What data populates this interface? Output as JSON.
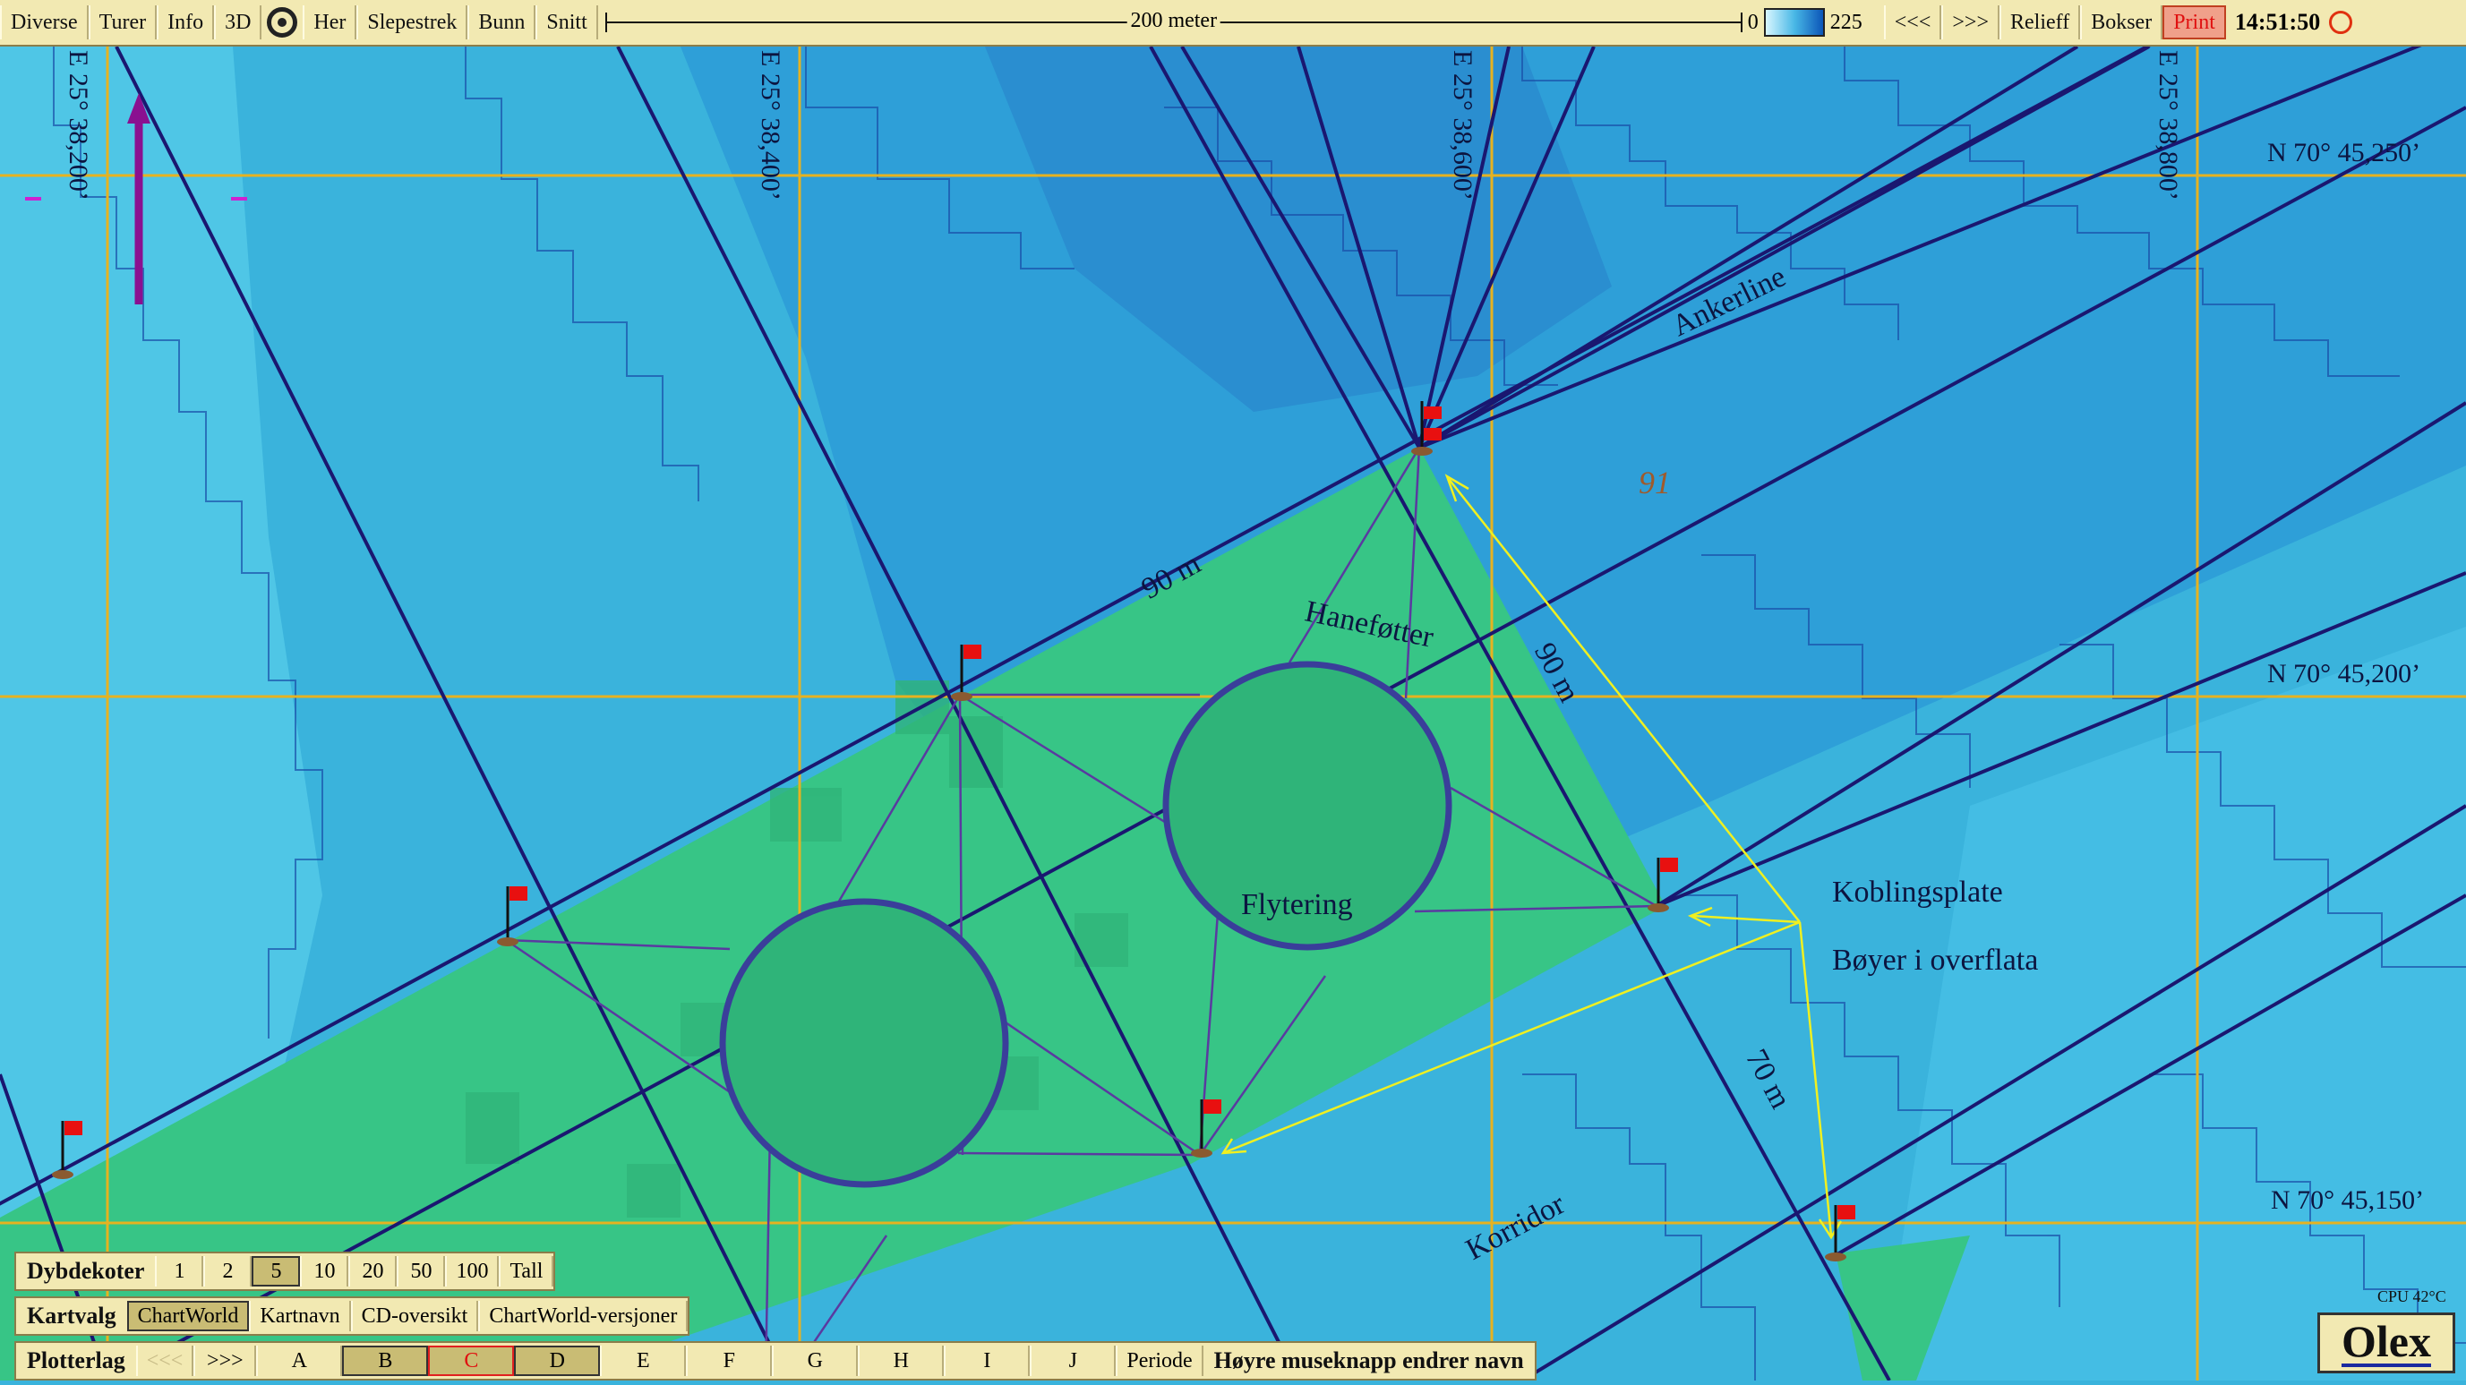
{
  "toolbar": {
    "buttons": [
      "Diverse",
      "Turer",
      "Info",
      "3D"
    ],
    "her": "Her",
    "buttons2": [
      "Slepestrek",
      "Bunn",
      "Snitt"
    ],
    "scale_label": "200 meter",
    "depth_min": "0",
    "depth_max": "225",
    "prev": "<<<",
    "next": ">>>",
    "relief": "Relieff",
    "bokser": "Bokser",
    "print": "Print",
    "clock": "14:51:50"
  },
  "map": {
    "lon_labels": [
      "E 25° 38,200’",
      "E 25° 38,400’",
      "E 25° 38,600’",
      "E 25° 38,800’"
    ],
    "lat_labels": [
      "N 70° 45,250’",
      "N 70° 45,200’",
      "N 70° 45,150’"
    ],
    "depth_value": "91",
    "labels": {
      "ankerline": "Ankerline",
      "hanefotter": "Haneføtter",
      "m90_a": "90 m",
      "m90_b": "90 m",
      "m70": "70 m",
      "flytering": "Flytering",
      "koblingsplate": "Koblingsplate",
      "boyer": "Bøyer i overflata",
      "korridor": "Korridor"
    },
    "colors": {
      "shallow": "#4fc6e6",
      "mid": "#3ab3dc",
      "deep": "#2696d4",
      "farm": "#37c586",
      "lines": "#1a1770",
      "grid": "#e6b220",
      "buoy_flag": "#e81010",
      "pointer": "#f0f020"
    }
  },
  "panels": {
    "dybdekoter": {
      "title": "Dybdekoter",
      "values": [
        "1",
        "2",
        "5",
        "10",
        "20",
        "50",
        "100",
        "Tall"
      ],
      "selected": "5"
    },
    "kartvalg": {
      "title": "Kartvalg",
      "items": [
        "ChartWorld",
        "Kartnavn",
        "CD-oversikt",
        "ChartWorld-versjoner"
      ],
      "selected": "ChartWorld"
    },
    "plotterlag": {
      "title": "Plotterlag",
      "prev": "<<<",
      "next": ">>>",
      "layers": [
        "A",
        "B",
        "C",
        "D",
        "E",
        "F",
        "G",
        "H",
        "I",
        "J"
      ],
      "periode": "Periode",
      "hint": "Høyre museknapp endrer navn"
    }
  },
  "status": {
    "cpu": "CPU 42°C",
    "brand": "Olex"
  }
}
